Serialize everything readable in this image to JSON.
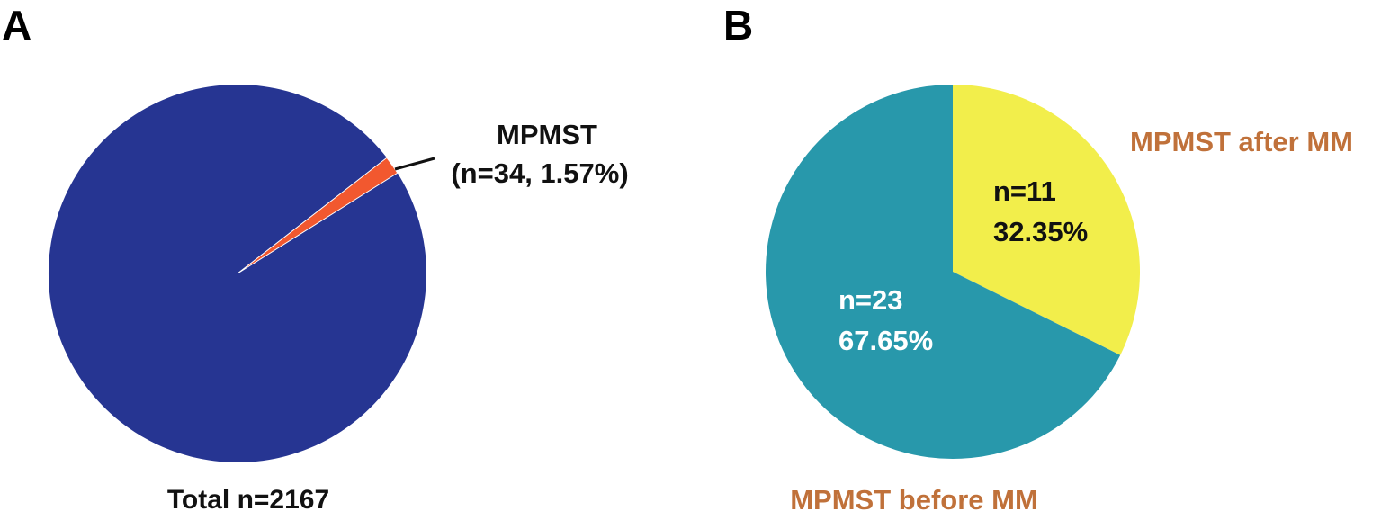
{
  "colors": {
    "a_majority": "#263592",
    "a_mpmst": "#f2582f",
    "b_before": "#2898ab",
    "b_after": "#f2ee4b",
    "outside_label_brown": "#c0713a",
    "inside_label_white": "#ffffff",
    "inside_label_black": "#111111",
    "leader_line": "#111111"
  },
  "chart_data": [
    {
      "type": "pie",
      "panel": "A",
      "title": "",
      "slices": [
        {
          "label": "",
          "value": 2133,
          "percent": 98.43,
          "color": "#263592"
        },
        {
          "label": "MPMST",
          "value": 34,
          "percent": 1.57,
          "color": "#f2582f"
        }
      ],
      "total": 2167,
      "annotations": {
        "callout_line1": "MPMST",
        "callout_line2": "(n=34, 1.57%)",
        "total_label": "Total n=2167"
      }
    },
    {
      "type": "pie",
      "panel": "B",
      "title": "",
      "slices": [
        {
          "label": "MPMST after MM",
          "value": 11,
          "percent": 32.35,
          "color": "#f2ee4b",
          "inside_n": "n=11",
          "inside_pct": "32.35%"
        },
        {
          "label": "MPMST before MM",
          "value": 23,
          "percent": 67.65,
          "color": "#2898ab",
          "inside_n": "n=23",
          "inside_pct": "67.65%"
        }
      ],
      "total": 34
    }
  ]
}
